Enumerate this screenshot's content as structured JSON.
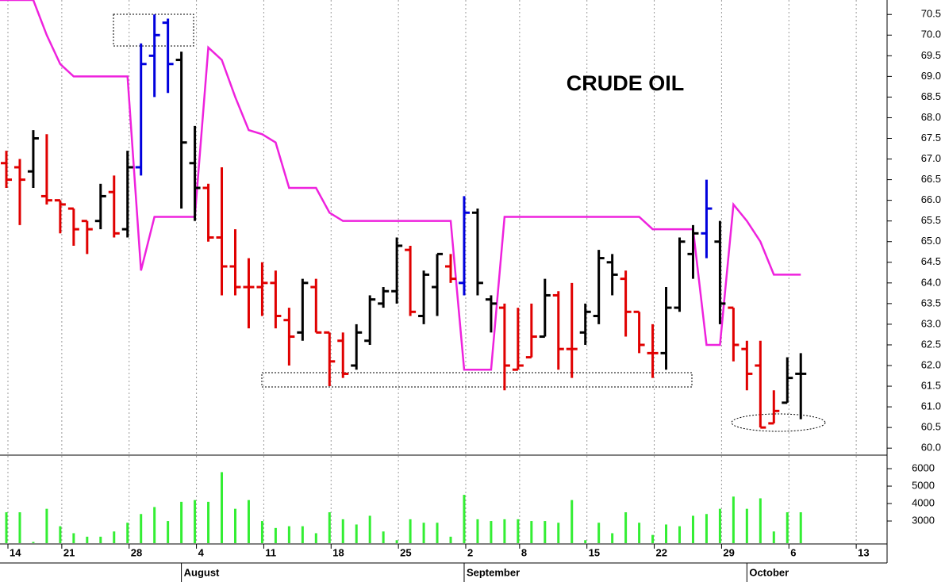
{
  "chart_data": {
    "type": "ohlc",
    "title": "CRUDE OIL",
    "categories": [
      "14",
      null,
      null,
      null,
      "21",
      null,
      null,
      null,
      null,
      "28",
      null,
      null,
      null,
      null,
      "4",
      null,
      null,
      null,
      null,
      "11",
      null,
      null,
      null,
      null,
      "18",
      null,
      null,
      null,
      null,
      "25",
      null,
      null,
      null,
      null,
      "2",
      null,
      null,
      null,
      "8",
      null,
      null,
      null,
      null,
      "15",
      null,
      null,
      null,
      null,
      "22",
      null,
      null,
      null,
      null,
      "29",
      null,
      null,
      null,
      null,
      "6",
      null,
      null,
      null,
      null,
      "13"
    ],
    "months": [
      null,
      null,
      null,
      null,
      null,
      null,
      null,
      null,
      null,
      null,
      null,
      null,
      null,
      "August",
      null,
      null,
      null,
      null,
      null,
      null,
      null,
      null,
      null,
      null,
      null,
      null,
      null,
      null,
      null,
      null,
      null,
      null,
      null,
      null,
      "September",
      null,
      null,
      null,
      null,
      null,
      null,
      null,
      null,
      null,
      null,
      null,
      null,
      null,
      null,
      null,
      null,
      null,
      null,
      null,
      null,
      "October",
      null,
      null,
      null,
      null,
      null,
      null,
      null,
      null
    ],
    "open": [
      66.9,
      66.8,
      66.7,
      66.1,
      66.0,
      65.8,
      65.5,
      65.5,
      66.2,
      65.3,
      66.8,
      69.5,
      70.3,
      69.4,
      66.9,
      66.3,
      65.1,
      64.4,
      63.9,
      63.9,
      64.0,
      63.1,
      62.8,
      63.9,
      62.8,
      62.6,
      62.0,
      62.6,
      63.5,
      63.8,
      64.8,
      63.2,
      63.9,
      64.4,
      64.0,
      65.7,
      63.6,
      63.4,
      61.9,
      62.2,
      62.7,
      63.7,
      62.4,
      62.8,
      63.2,
      64.5,
      64.1,
      63.3,
      62.3,
      62.3,
      63.4,
      64.7,
      65.2,
      65.0,
      63.4,
      62.4,
      62.0,
      60.6,
      61.1,
      61.8,
      null,
      null,
      null,
      null
    ],
    "high": [
      67.2,
      67.0,
      67.7,
      67.6,
      66.0,
      65.8,
      65.5,
      66.4,
      66.6,
      67.2,
      69.8,
      70.5,
      70.4,
      69.6,
      67.8,
      66.4,
      66.8,
      65.3,
      64.6,
      64.5,
      64.3,
      63.4,
      64.1,
      64.1,
      62.8,
      62.8,
      63.0,
      63.7,
      63.9,
      65.1,
      64.9,
      64.3,
      64.7,
      64.7,
      66.1,
      65.8,
      63.7,
      63.5,
      63.4,
      63.5,
      64.1,
      63.8,
      64.0,
      63.5,
      64.8,
      64.7,
      64.3,
      63.3,
      63.0,
      63.9,
      65.1,
      65.4,
      66.5,
      65.5,
      63.4,
      62.6,
      62.6,
      61.4,
      62.2,
      62.3,
      null,
      null,
      null,
      null
    ],
    "low": [
      66.3,
      65.4,
      66.3,
      65.9,
      65.2,
      64.9,
      64.7,
      65.3,
      65.1,
      65.1,
      66.6,
      68.5,
      68.6,
      65.8,
      65.5,
      65.0,
      63.7,
      63.7,
      62.9,
      63.2,
      62.9,
      62.0,
      62.6,
      62.8,
      61.5,
      61.7,
      61.9,
      62.5,
      63.4,
      63.5,
      63.2,
      63.0,
      63.2,
      64.0,
      63.7,
      63.7,
      62.8,
      61.4,
      61.9,
      62.2,
      62.7,
      61.9,
      61.7,
      62.5,
      63.0,
      63.7,
      62.7,
      62.3,
      61.7,
      61.9,
      63.3,
      64.1,
      64.6,
      63.0,
      62.1,
      61.4,
      60.5,
      60.6,
      61.1,
      60.7,
      null,
      null,
      null,
      null
    ],
    "close": [
      66.5,
      66.5,
      67.5,
      66.0,
      65.9,
      65.3,
      65.3,
      66.1,
      65.2,
      66.8,
      69.3,
      70.0,
      69.3,
      67.4,
      66.3,
      65.1,
      64.4,
      63.9,
      63.9,
      64.0,
      63.2,
      62.7,
      64.0,
      62.8,
      62.1,
      61.8,
      62.8,
      63.6,
      63.8,
      64.9,
      63.3,
      64.2,
      64.7,
      64.1,
      65.7,
      64.0,
      63.5,
      62.0,
      62.0,
      62.7,
      63.7,
      62.4,
      62.4,
      63.3,
      64.6,
      64.2,
      63.3,
      62.5,
      62.3,
      63.4,
      65.0,
      65.2,
      65.8,
      63.5,
      62.5,
      61.8,
      60.5,
      60.9,
      61.7,
      61.8,
      null,
      null,
      null,
      null
    ],
    "bar_colors": [
      "#e00000",
      "#e00000",
      "#000000",
      "#e00000",
      "#e00000",
      "#e00000",
      "#e00000",
      "#000000",
      "#e00000",
      "#000000",
      "#0000dd",
      "#0000dd",
      "#0000dd",
      "#000000",
      "#000000",
      "#e00000",
      "#e00000",
      "#e00000",
      "#e00000",
      "#e00000",
      "#e00000",
      "#e00000",
      "#000000",
      "#e00000",
      "#e00000",
      "#e00000",
      "#000000",
      "#000000",
      "#000000",
      "#000000",
      "#e00000",
      "#000000",
      "#000000",
      "#e00000",
      "#0000dd",
      "#000000",
      "#000000",
      "#e00000",
      "#e00000",
      "#e00000",
      "#000000",
      "#e00000",
      "#e00000",
      "#000000",
      "#000000",
      "#000000",
      "#e00000",
      "#e00000",
      "#e00000",
      "#000000",
      "#000000",
      "#000000",
      "#0000dd",
      "#000000",
      "#e00000",
      "#e00000",
      "#e00000",
      "#e00000",
      "#000000",
      "#000000",
      null,
      null,
      null,
      null
    ],
    "stop_line": {
      "color": "#ee22dd",
      "values": [
        70.85,
        70.85,
        70.85,
        70.0,
        69.3,
        69.0,
        69.0,
        69.0,
        69.0,
        69.0,
        64.3,
        65.6,
        65.6,
        65.6,
        65.6,
        69.7,
        69.4,
        68.5,
        67.7,
        67.6,
        67.4,
        66.3,
        66.3,
        66.3,
        65.7,
        65.5,
        65.5,
        65.5,
        65.5,
        65.5,
        65.5,
        65.5,
        65.5,
        65.5,
        61.9,
        61.9,
        61.9,
        65.6,
        65.6,
        65.6,
        65.6,
        65.6,
        65.6,
        65.6,
        65.6,
        65.6,
        65.6,
        65.6,
        65.3,
        65.3,
        65.3,
        65.3,
        62.5,
        62.5,
        65.9,
        65.5,
        65.0,
        64.2,
        64.2,
        64.2,
        null,
        null,
        null,
        null
      ]
    },
    "ylim": [
      59.85,
      70.85
    ],
    "yticks": [
      {
        "value": 60,
        "label": "60.0"
      },
      60.5,
      {
        "value": 61,
        "label": "61.0"
      },
      61.5,
      {
        "value": 62,
        "label": "62.0"
      },
      62.5,
      {
        "value": 63,
        "label": "63.0"
      },
      63.5,
      {
        "value": 64,
        "label": "64.0"
      },
      64.5,
      {
        "value": 65,
        "label": "65.0"
      },
      65.5,
      {
        "value": 66,
        "label": "66.0"
      },
      66.5,
      {
        "value": 67,
        "label": "67.0"
      },
      67.5,
      {
        "value": 68,
        "label": "68.0"
      },
      68.5,
      {
        "value": 69,
        "label": "69.0"
      },
      69.5,
      {
        "value": 70,
        "label": "70.0"
      },
      70.5
    ],
    "volume": {
      "type": "bar",
      "color": "#33ee33",
      "ylim": [
        1730,
        6730
      ],
      "yticks": [
        3000,
        4000,
        5000,
        6000
      ],
      "values": [
        3500,
        3500,
        1800,
        3700,
        2700,
        2300,
        2100,
        2100,
        2400,
        2900,
        3400,
        3800,
        3000,
        4100,
        4200,
        4100,
        5800,
        3700,
        4200,
        3000,
        2600,
        2700,
        2700,
        2300,
        3500,
        3100,
        2800,
        3300,
        2400,
        1900,
        3100,
        2900,
        2900,
        2100,
        4500,
        3100,
        3000,
        3100,
        3100,
        3000,
        3000,
        2900,
        4200,
        1900,
        2900,
        2300,
        3500,
        2900,
        2200,
        2800,
        2700,
        3300,
        3400,
        3700,
        4400,
        3700,
        4300,
        2400,
        3500,
        3500,
        null,
        null,
        null,
        null
      ]
    }
  }
}
